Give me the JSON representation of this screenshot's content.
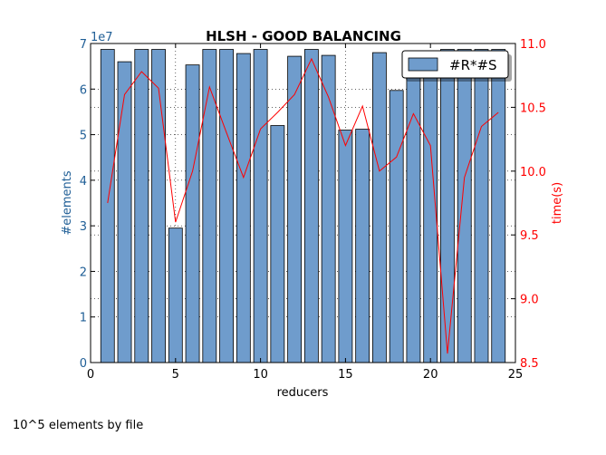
{
  "footer_note": "10^5 elements by file",
  "chart_data": {
    "type": "bar",
    "title": "HLSH - GOOD BALANCING",
    "xlabel": "reducers",
    "ylabel": "#elements",
    "y2label": "time(s)",
    "y_multiplier_label": "1e7",
    "xlim": [
      0,
      25
    ],
    "ylim": [
      0,
      7
    ],
    "y2lim": [
      8.5,
      11.0
    ],
    "x_ticks": [
      "0",
      "5",
      "10",
      "15",
      "20",
      "25"
    ],
    "y_ticks": [
      "0",
      "1",
      "2",
      "3",
      "4",
      "5",
      "6",
      "7"
    ],
    "y2_ticks": [
      "8.5",
      "9.0",
      "9.5",
      "10.0",
      "10.5",
      "11.0"
    ],
    "legend": {
      "label": "#R*#S",
      "placement": "top-right"
    },
    "grid": true,
    "colors": {
      "bars": "#6f9ccc",
      "line": "#ff0000",
      "left_axis": "#1f5e96",
      "right_axis": "#ff0000"
    },
    "series": [
      {
        "name": "#R*#S",
        "kind": "bar",
        "axis": "left",
        "x": [
          1,
          2,
          3,
          4,
          5,
          6,
          7,
          8,
          9,
          10,
          11,
          12,
          13,
          14,
          15,
          16,
          17,
          18,
          19,
          20,
          21,
          22,
          23,
          24
        ],
        "values": [
          6.87,
          6.6,
          6.87,
          6.87,
          2.95,
          6.53,
          6.87,
          6.87,
          6.78,
          6.87,
          5.2,
          6.72,
          6.87,
          6.74,
          5.1,
          5.12,
          6.8,
          5.97,
          6.35,
          6.4,
          6.87,
          6.87,
          6.87,
          6.87
        ]
      },
      {
        "name": "time",
        "kind": "line",
        "axis": "right",
        "x": [
          1,
          2,
          3,
          4,
          5,
          6,
          7,
          8,
          9,
          10,
          11,
          12,
          13,
          14,
          15,
          16,
          17,
          18,
          19,
          20,
          21,
          22,
          23,
          24
        ],
        "values": [
          9.75,
          10.6,
          10.78,
          10.65,
          9.6,
          10.0,
          10.66,
          10.3,
          9.95,
          10.33,
          10.46,
          10.6,
          10.88,
          10.58,
          10.2,
          10.51,
          10.0,
          10.11,
          10.45,
          10.2,
          8.57,
          9.95,
          10.35,
          10.46
        ]
      }
    ]
  }
}
